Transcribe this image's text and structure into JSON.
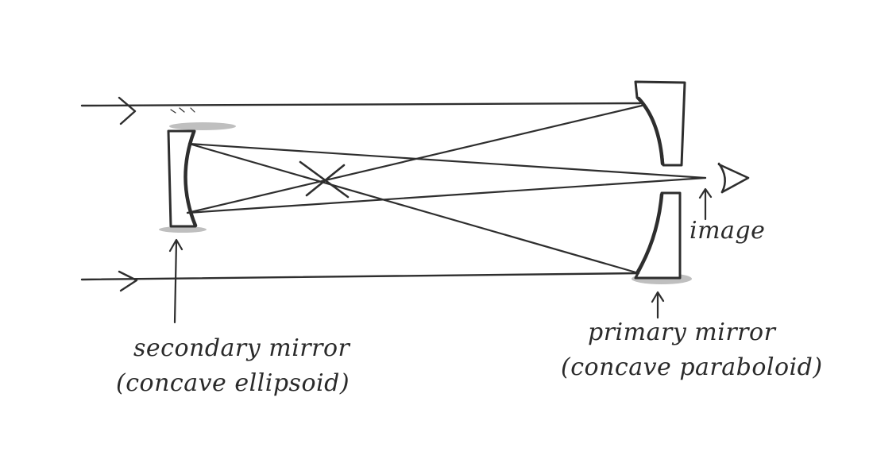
{
  "labels": {
    "secondary_line1": "secondary mirror",
    "secondary_line2": "(concave ellipsoid)",
    "primary_line1": "primary mirror",
    "primary_line2": "(concave paraboloid)",
    "image": "image"
  },
  "icons": {
    "eye": "eye-icon",
    "arrows": "arrow-icon"
  },
  "colors": {
    "ink": "#2e2e2e",
    "smudge": "#8a8a8a",
    "background": "#ffffff"
  }
}
